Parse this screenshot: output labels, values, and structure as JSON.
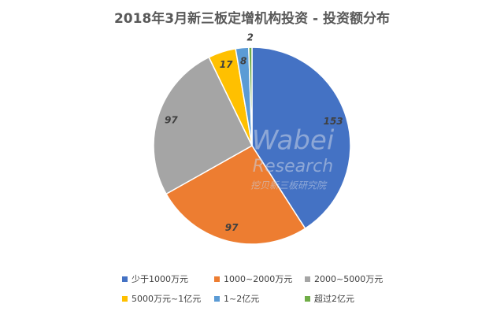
{
  "chart_data": {
    "type": "pie",
    "title": "2018年3月新三板定增机构投资 - 投资额分布",
    "categories": [
      "少于1000万元",
      "1000~2000万元",
      "2000~5000万元",
      "5000万元~1亿元",
      "1~2亿元",
      "超过2亿元"
    ],
    "values": [
      153,
      97,
      97,
      17,
      8,
      2
    ],
    "colors": [
      "#4472c4",
      "#ed7d31",
      "#a5a5a5",
      "#ffc000",
      "#5b9bd5",
      "#70ad47"
    ],
    "start_angle": 0,
    "direction": "clockwise",
    "legend": "bottom",
    "watermark": [
      "Wabei",
      "Research",
      "挖贝新三板研究院"
    ]
  }
}
